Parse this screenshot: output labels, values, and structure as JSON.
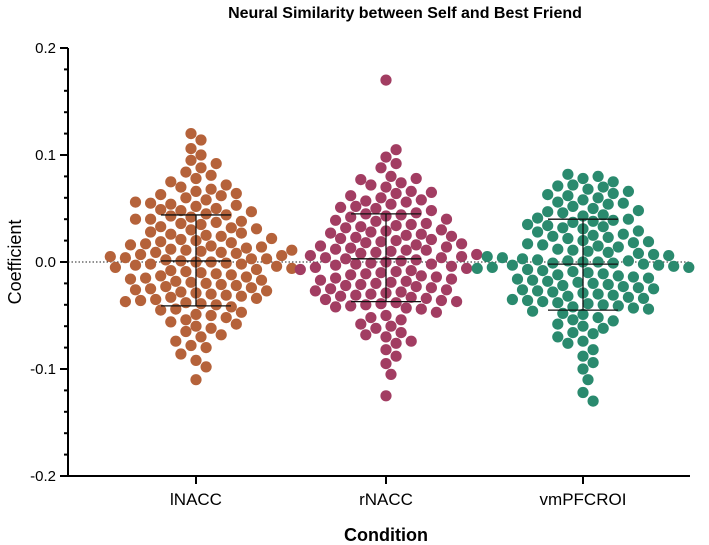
{
  "chart_data": {
    "type": "scatter",
    "subtype": "beeswarm",
    "title": "Neural Similarity between Self and Best Friend",
    "xlabel": "Condition",
    "ylabel": "Coefficient",
    "ylim": [
      -0.2,
      0.2
    ],
    "y_ticks": [
      -0.2,
      -0.1,
      0.0,
      0.1,
      0.2
    ],
    "y_tick_labels": [
      "-0.2",
      "-0.1",
      "0.0",
      "0.1",
      "0.2"
    ],
    "reference_line": 0,
    "grid": false,
    "legend": "none",
    "categories": [
      "lNACC",
      "rNACC",
      "vmPFCROI"
    ],
    "series": [
      {
        "category": "lNACC",
        "color": "#b5623a",
        "mean": 0.001,
        "sd_upper": 0.044,
        "sd_lower": -0.041,
        "values": [
          0.12,
          0.114,
          -0.11,
          0.1,
          -0.098,
          0.092,
          0.088,
          -0.092,
          0.084,
          -0.086,
          0.078,
          0.075,
          -0.08,
          0.072,
          -0.074,
          0.068,
          0.066,
          0.064,
          -0.068,
          0.062,
          0.06,
          -0.062,
          0.058,
          0.056,
          0.055,
          -0.058,
          0.053,
          0.052,
          -0.054,
          0.05,
          0.048,
          -0.05,
          0.047,
          0.045,
          0.044,
          -0.047,
          0.042,
          0.04,
          0.04,
          -0.044,
          0.038,
          0.036,
          -0.04,
          0.035,
          0.033,
          0.032,
          -0.037,
          0.03,
          0.028,
          -0.034,
          0.027,
          0.025,
          0.024,
          -0.031,
          0.022,
          0.021,
          0.02,
          -0.028,
          0.018,
          0.017,
          -0.025,
          0.016,
          0.014,
          0.013,
          -0.022,
          0.012,
          0.011,
          0.01,
          -0.019,
          0.009,
          0.008,
          0.007,
          -0.016,
          0.006,
          0.005,
          0.004,
          -0.013,
          0.003,
          0.002,
          0.001,
          -0.01,
          0.0,
          0.0,
          -0.001,
          -0.007,
          -0.002,
          -0.003,
          -0.004,
          -0.005,
          -0.006,
          -0.008,
          -0.009,
          -0.011,
          -0.012,
          -0.014,
          -0.015,
          -0.017,
          -0.018,
          -0.02,
          -0.021,
          -0.023,
          -0.024,
          -0.026,
          -0.027,
          -0.029,
          -0.03,
          -0.032,
          -0.033,
          -0.035,
          -0.036,
          -0.038,
          -0.039,
          -0.042,
          -0.045,
          -0.049,
          -0.052,
          -0.056,
          -0.06,
          0.011,
          0.009,
          0.003,
          -0.002,
          0.015,
          0.019,
          0.026,
          0.031,
          0.037,
          0.043,
          0.049,
          0.054,
          -0.065,
          -0.07,
          -0.078,
          0.063,
          0.07,
          0.081,
          0.095,
          0.106
        ]
      },
      {
        "category": "rNACC",
        "color": "#a23d62",
        "mean": 0.003,
        "sd_upper": 0.045,
        "sd_lower": -0.037,
        "values": [
          0.17,
          0.105,
          0.098,
          -0.125,
          0.092,
          0.088,
          -0.105,
          0.08,
          0.077,
          -0.095,
          0.074,
          0.072,
          -0.088,
          0.07,
          0.066,
          -0.082,
          0.064,
          0.062,
          -0.076,
          0.06,
          0.058,
          -0.07,
          0.056,
          0.054,
          -0.066,
          0.052,
          0.05,
          -0.062,
          0.048,
          0.046,
          -0.058,
          0.045,
          0.043,
          -0.054,
          0.042,
          0.04,
          -0.05,
          0.038,
          0.036,
          -0.047,
          0.035,
          0.033,
          -0.044,
          0.032,
          0.03,
          -0.041,
          0.028,
          0.027,
          -0.038,
          0.026,
          0.024,
          -0.035,
          0.023,
          0.022,
          -0.032,
          0.02,
          0.019,
          -0.029,
          0.018,
          0.016,
          -0.026,
          0.015,
          0.014,
          -0.023,
          0.013,
          0.012,
          -0.02,
          0.011,
          0.01,
          -0.018,
          0.009,
          0.008,
          -0.016,
          0.007,
          0.006,
          -0.014,
          0.005,
          0.004,
          -0.012,
          0.003,
          0.002,
          -0.01,
          0.001,
          0.0,
          -0.008,
          -0.001,
          -0.002,
          -0.003,
          -0.004,
          -0.005,
          -0.006,
          -0.007,
          -0.009,
          -0.011,
          -0.013,
          -0.015,
          -0.017,
          -0.019,
          -0.021,
          -0.022,
          -0.024,
          -0.025,
          -0.027,
          -0.028,
          -0.03,
          -0.031,
          -0.033,
          -0.034,
          -0.036,
          -0.037,
          -0.039,
          -0.04,
          -0.042,
          -0.043,
          0.025,
          0.021,
          0.017,
          0.011,
          0.004,
          -0.002,
          0.029,
          0.034,
          0.039,
          0.044,
          0.051,
          0.057,
          0.065,
          -0.052,
          -0.06,
          -0.068,
          -0.074,
          0.078
        ]
      },
      {
        "category": "vmPFCROI",
        "color": "#2a8a6e",
        "mean": -0.002,
        "sd_upper": 0.04,
        "sd_lower": -0.045,
        "values": [
          0.082,
          0.08,
          0.078,
          -0.13,
          0.075,
          0.072,
          -0.122,
          0.07,
          0.068,
          -0.11,
          0.066,
          0.064,
          -0.1,
          0.062,
          0.06,
          -0.094,
          0.058,
          0.056,
          -0.088,
          0.054,
          0.052,
          -0.082,
          0.05,
          0.048,
          -0.076,
          0.046,
          0.044,
          -0.07,
          0.043,
          0.041,
          -0.066,
          0.04,
          0.038,
          -0.062,
          0.037,
          0.035,
          -0.058,
          0.034,
          0.032,
          -0.055,
          0.031,
          0.029,
          -0.052,
          0.028,
          0.026,
          -0.049,
          0.025,
          0.023,
          -0.046,
          0.022,
          0.02,
          -0.043,
          0.019,
          0.018,
          -0.04,
          0.016,
          0.015,
          -0.037,
          0.014,
          0.012,
          -0.034,
          0.011,
          0.01,
          -0.031,
          0.009,
          0.008,
          -0.028,
          0.007,
          0.006,
          -0.025,
          0.005,
          0.004,
          -0.022,
          0.003,
          0.002,
          -0.02,
          0.001,
          0.0,
          -0.018,
          -0.001,
          -0.002,
          -0.016,
          -0.003,
          -0.004,
          -0.014,
          -0.005,
          -0.006,
          -0.012,
          -0.007,
          -0.008,
          -0.01,
          -0.009,
          -0.011,
          -0.013,
          -0.015,
          -0.017,
          -0.019,
          -0.021,
          -0.023,
          -0.024,
          -0.026,
          -0.027,
          -0.029,
          -0.03,
          -0.032,
          -0.033,
          -0.035,
          -0.036,
          -0.038,
          -0.039,
          -0.041,
          -0.042,
          -0.044,
          -0.003,
          -0.001,
          -0.005,
          0.0,
          0.001,
          0.017,
          0.024,
          0.033,
          0.039,
          0.047,
          0.055,
          0.063,
          0.071,
          -0.048,
          -0.054,
          -0.06,
          -0.067,
          -0.074
        ]
      }
    ]
  }
}
